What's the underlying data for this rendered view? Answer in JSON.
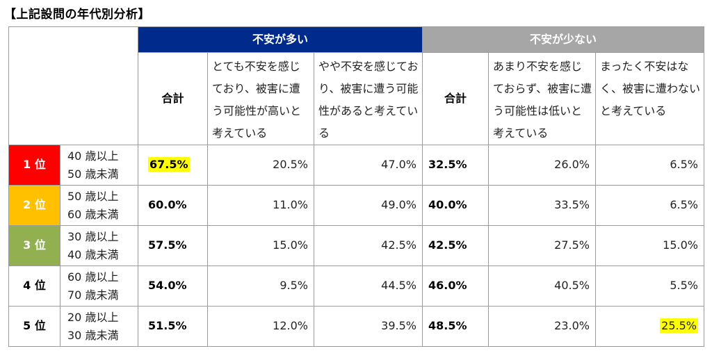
{
  "title": "【上記設問の年代別分析】",
  "groups": {
    "a": "不安が多い",
    "b": "不安が少ない"
  },
  "headers": {
    "total": "合計",
    "a1": "とても不安を感じており、被害に遭う可能性が高いと考えている",
    "a2": "やや不安を感じており、被害に遭う可能性があると考えている",
    "b1": "あまり不安を感じておらず、被害に遭う可能性は低いと考えている",
    "b2": "まったく不安はなく、被害に遭わないと考えている"
  },
  "highlight_color": "#ffff00",
  "rank_colors": {
    "1": "#ff0000",
    "2": "#ffc000",
    "3": "#92b050"
  },
  "rows": [
    {
      "rank": "1 位",
      "age1": "40 歳以上",
      "age2": "50 歳未満",
      "total_a": "67.5%",
      "a1": "20.5%",
      "a2": "47.0%",
      "total_b": "32.5%",
      "b1": "26.0%",
      "b2": "6.5%"
    },
    {
      "rank": "2 位",
      "age1": "50 歳以上",
      "age2": "60 歳未満",
      "total_a": "60.0%",
      "a1": "11.0%",
      "a2": "49.0%",
      "total_b": "40.0%",
      "b1": "33.5%",
      "b2": "6.5%"
    },
    {
      "rank": "3 位",
      "age1": "30 歳以上",
      "age2": "40 歳未満",
      "total_a": "57.5%",
      "a1": "15.0%",
      "a2": "42.5%",
      "total_b": "42.5%",
      "b1": "27.5%",
      "b2": "15.0%"
    },
    {
      "rank": "4 位",
      "age1": "60 歳以上",
      "age2": "70 歳未満",
      "total_a": "54.0%",
      "a1": "9.5%",
      "a2": "44.5%",
      "total_b": "46.0%",
      "b1": "40.5%",
      "b2": "5.5%"
    },
    {
      "rank": "5 位",
      "age1": "20 歳以上",
      "age2": "30 歳未満",
      "total_a": "51.5%",
      "a1": "12.0%",
      "a2": "39.5%",
      "total_b": "48.5%",
      "b1": "23.0%",
      "b2": "25.5%"
    }
  ]
}
